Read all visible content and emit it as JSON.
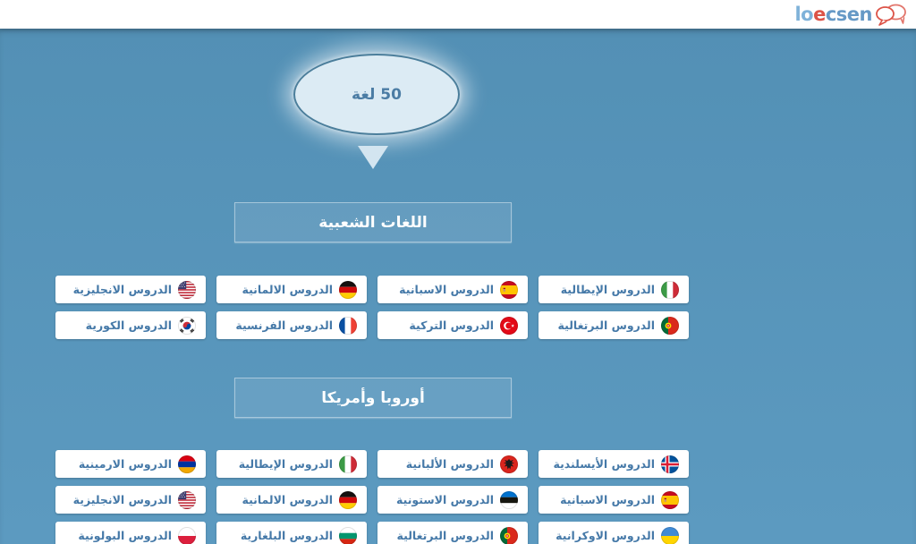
{
  "header": {
    "logo": {
      "part1": "lo",
      "part2": "e",
      "part3": "csen"
    },
    "logo_icon": "speech-bubbles-icon"
  },
  "hero": {
    "count_label": "50 لغة",
    "arrow_icon": "triangle-down-icon"
  },
  "sections": [
    {
      "title": "اللغات الشعبية",
      "items": [
        {
          "label": "الدروس الإيطالية",
          "flag": "flag-italy"
        },
        {
          "label": "الدروس الاسبانية",
          "flag": "flag-spain"
        },
        {
          "label": "الدروس الالمانية",
          "flag": "flag-germany"
        },
        {
          "label": "الدروس الانجليزية",
          "flag": "flag-usa"
        },
        {
          "label": "الدروس البرتغالية",
          "flag": "flag-portugal"
        },
        {
          "label": "الدروس التركية",
          "flag": "flag-turkey"
        },
        {
          "label": "الدروس الفرنسية",
          "flag": "flag-france"
        },
        {
          "label": "الدروس الكورية",
          "flag": "flag-south-korea"
        }
      ]
    },
    {
      "title": "أوروبا وأمريكا",
      "items": [
        {
          "label": "الدروس الأيسلندية",
          "flag": "flag-iceland"
        },
        {
          "label": "الدروس الألبانية",
          "flag": "flag-albania"
        },
        {
          "label": "الدروس الإيطالية",
          "flag": "flag-italy"
        },
        {
          "label": "الدروس الارمينية",
          "flag": "flag-armenia"
        },
        {
          "label": "الدروس الاسبانية",
          "flag": "flag-spain"
        },
        {
          "label": "الدروس الاستونية",
          "flag": "flag-estonia"
        },
        {
          "label": "الدروس الالمانية",
          "flag": "flag-germany"
        },
        {
          "label": "الدروس الانجليزية",
          "flag": "flag-usa"
        },
        {
          "label": "الدروس الاوكرانية",
          "flag": "flag-ukraine"
        },
        {
          "label": "الدروس البرتغالية",
          "flag": "flag-portugal"
        },
        {
          "label": "الدروس البلغارية",
          "flag": "flag-bulgaria"
        },
        {
          "label": "الدروس البولونية",
          "flag": "flag-poland"
        }
      ]
    }
  ],
  "colors": {
    "page_background_top": "#5390B5",
    "page_background_bottom": "#5C9AC0",
    "topbar_background": "#FFFFFF",
    "button_text": "#4579A8",
    "section_title_text": "#FFFFFF",
    "oval_fill": "#DCEBF4",
    "oval_border": "#4B7E9B",
    "logo_blue": "#7FB2D9",
    "logo_red": "#DC5347"
  }
}
